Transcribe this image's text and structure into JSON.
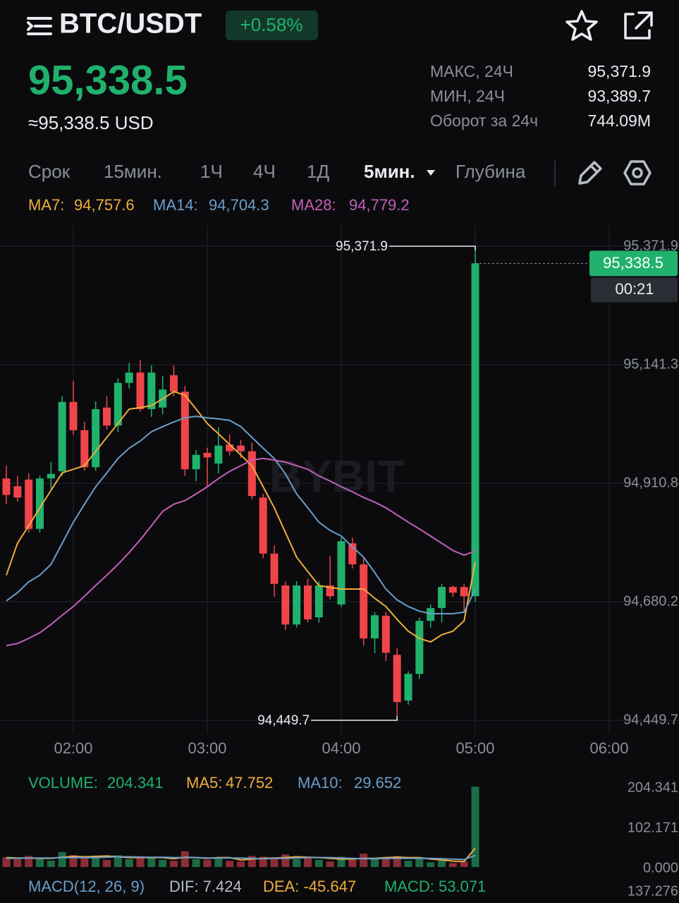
{
  "header": {
    "pair": "BTC/USDT",
    "change": "+0.58%",
    "price": "95,338.5",
    "price_usd": "≈95,338.5 USD"
  },
  "stats": [
    {
      "label": "МАКС, 24Ч",
      "value": "95,371.9"
    },
    {
      "label": "МИН, 24Ч",
      "value": "93,389.7"
    },
    {
      "label": "Оборот за 24ч",
      "value": "744.09M"
    }
  ],
  "tabs": [
    "Срок",
    "15мин.",
    "1Ч",
    "4Ч",
    "1Д",
    "5мин.",
    "Глубина"
  ],
  "selected_tab": 5,
  "chart_data": [
    {
      "type": "candlestick",
      "x": [
        "01:30",
        "01:35",
        "01:40",
        "01:45",
        "01:50",
        "01:55",
        "02:00",
        "02:05",
        "02:10",
        "02:15",
        "02:20",
        "02:25",
        "02:30",
        "02:35",
        "02:40",
        "02:45",
        "02:50",
        "02:55",
        "03:00",
        "03:05",
        "03:10",
        "03:15",
        "03:20",
        "03:25",
        "03:30",
        "03:35",
        "03:40",
        "03:45",
        "03:50",
        "03:55",
        "04:00",
        "04:05",
        "04:10",
        "04:15",
        "04:20",
        "04:25",
        "04:30",
        "04:35",
        "04:40",
        "04:45",
        "04:50",
        "04:55",
        "05:00"
      ],
      "open": [
        94920,
        94905,
        94918,
        94822,
        94920,
        94934,
        95069,
        95014,
        94942,
        95058,
        95023,
        95106,
        95126,
        95055,
        95058,
        95121,
        95089,
        94938,
        94970,
        94949,
        94986,
        94984,
        94973,
        94883,
        94774,
        94712,
        94636,
        94712,
        94650,
        94712,
        94675,
        94794,
        94753,
        94609,
        94653,
        94577,
        94488,
        94540,
        94643,
        94668,
        94709,
        94709,
        94691
      ],
      "high": [
        94945,
        94925,
        94930,
        94925,
        94952,
        95080,
        95110,
        95030,
        95070,
        95080,
        95115,
        95145,
        95150,
        95140,
        95120,
        95140,
        95100,
        94975,
        94980,
        95020,
        95005,
        94995,
        94990,
        94890,
        94790,
        94720,
        94720,
        94725,
        94720,
        94770,
        94805,
        94805,
        94765,
        94660,
        94660,
        94590,
        94545,
        94650,
        94675,
        94715,
        94712,
        94715,
        95371.9
      ],
      "low": [
        94870,
        94875,
        94815,
        94815,
        94900,
        94925,
        95005,
        94935,
        94935,
        95015,
        95010,
        95095,
        95050,
        95040,
        95045,
        95080,
        94925,
        94915,
        94904,
        94930,
        94965,
        94960,
        94880,
        94765,
        94690,
        94625,
        94630,
        94640,
        94640,
        94685,
        94670,
        94745,
        94595,
        94580,
        94565,
        94449.7,
        94480,
        94530,
        94630,
        94640,
        94690,
        94660,
        94680
      ],
      "close": [
        94888,
        94883,
        94822,
        94920,
        94929,
        95069,
        95014,
        94942,
        95055,
        95023,
        95106,
        95126,
        95055,
        95126,
        95093,
        95089,
        94938,
        94966,
        94961,
        94984,
        94973,
        94973,
        94886,
        94774,
        94715,
        94636,
        94712,
        94646,
        94712,
        94691,
        94798,
        94753,
        94609,
        94654,
        94581,
        94485,
        94540,
        94643,
        94668,
        94709,
        94698,
        94691,
        95338.5
      ],
      "up_color": "#20b26c",
      "down_color": "#ef454a",
      "series": [
        {
          "name": "MA7:",
          "label": "94,757.6",
          "color": "#f0ad3c",
          "values": [
            94732,
            94794,
            94828,
            94863,
            94897,
            94931,
            94938,
            94945,
            94973,
            95000,
            95027,
            95055,
            95058,
            95062,
            95075,
            95089,
            95082,
            95055,
            95027,
            95007,
            94986,
            94966,
            94945,
            94904,
            94863,
            94815,
            94767,
            94739,
            94712,
            94708,
            94705,
            94705,
            94705,
            94687,
            94671,
            94646,
            94623,
            94609,
            94602,
            94616,
            94623,
            94643,
            94757.6
          ]
        },
        {
          "name": "MA14:",
          "label": "94,704.3",
          "color": "#6a9fc8",
          "values": [
            94682,
            94698,
            94719,
            94732,
            94753,
            94794,
            94835,
            94870,
            94904,
            94931,
            94959,
            94979,
            94993,
            95011,
            95021,
            95030,
            95038,
            95041,
            95038,
            95036,
            95033,
            95021,
            95000,
            94979,
            94959,
            94929,
            94890,
            94863,
            94835,
            94819,
            94808,
            94787,
            94767,
            94737,
            94705,
            94684,
            94671,
            94662,
            94657,
            94657,
            94657,
            94660,
            94704.3
          ]
        },
        {
          "name": "MA28:",
          "label": "94,779.2",
          "color": "#c55fb8",
          "values": [
            94595,
            94599,
            94609,
            94620,
            94636,
            94654,
            94671,
            94691,
            94712,
            94732,
            94753,
            94776,
            94801,
            94828,
            94856,
            94870,
            94877,
            94890,
            94904,
            94920,
            94934,
            94945,
            94956,
            94959,
            94956,
            94952,
            94945,
            94938,
            94925,
            94915,
            94904,
            94894,
            94883,
            94874,
            94863,
            94849,
            94835,
            94822,
            94808,
            94794,
            94780,
            94771,
            94779.2
          ]
        }
      ],
      "ylim": [
        94423.6,
        95411.7
      ],
      "yticks": [
        {
          "value": 95371.9,
          "label": "95,371.9"
        },
        {
          "value": 95141.3,
          "label": "95,141.3"
        },
        {
          "value": 94910.8,
          "label": "94,910.8"
        },
        {
          "value": 94680.2,
          "label": "94,680.2"
        },
        {
          "value": 94449.7,
          "label": "94,449.7"
        }
      ],
      "xticks": [
        "02:00",
        "03:00",
        "04:00",
        "05:00",
        "06:00"
      ],
      "max_label": {
        "value": 95371.9,
        "label": "95,371.9"
      },
      "min_label": {
        "value": 94449.7,
        "label": "94,449.7"
      },
      "last_price": {
        "value": 95338.5,
        "label": "95,338.5"
      },
      "countdown": "00:21",
      "grid": true,
      "watermark": "BYBIT"
    },
    {
      "type": "bar",
      "x": [
        "01:30",
        "01:35",
        "01:40",
        "01:45",
        "01:50",
        "01:55",
        "02:00",
        "02:05",
        "02:10",
        "02:15",
        "02:20",
        "02:25",
        "02:30",
        "02:35",
        "02:40",
        "02:45",
        "02:50",
        "02:55",
        "03:00",
        "03:05",
        "03:10",
        "03:15",
        "03:20",
        "03:25",
        "03:30",
        "03:35",
        "03:40",
        "03:45",
        "03:50",
        "03:55",
        "04:00",
        "04:05",
        "04:10",
        "04:15",
        "04:20",
        "04:25",
        "04:30",
        "04:35",
        "04:40",
        "04:45",
        "04:50",
        "04:55",
        "05:00"
      ],
      "series": [
        {
          "name": "VOLUME:",
          "label": "204.341",
          "color": "#20b26c",
          "values": [
            25,
            20,
            28,
            22,
            16,
            38,
            30,
            24,
            28,
            18,
            30,
            20,
            28,
            24,
            18,
            16,
            40,
            20,
            18,
            24,
            16,
            14,
            28,
            26,
            22,
            32,
            20,
            24,
            18,
            14,
            26,
            18,
            34,
            20,
            24,
            28,
            16,
            20,
            12,
            16,
            10,
            14,
            204.341
          ]
        },
        {
          "name": "MA5:",
          "label": "47.752",
          "color": "#f0ad3c",
          "values": [
            24,
            23,
            23,
            22,
            22,
            25,
            27,
            26,
            27,
            28,
            26,
            24,
            24,
            24,
            24,
            21,
            25,
            24,
            22,
            24,
            24,
            18,
            20,
            22,
            23,
            24,
            26,
            25,
            24,
            22,
            20,
            20,
            22,
            22,
            24,
            25,
            24,
            24,
            20,
            18,
            15,
            14,
            47.752
          ]
        },
        {
          "name": "MA10:",
          "label": "29.652",
          "color": "#6a9fc8",
          "values": [
            22,
            22,
            23,
            23,
            23,
            24,
            24,
            24,
            24,
            25,
            26,
            26,
            25,
            25,
            25,
            24,
            24,
            24,
            23,
            23,
            23,
            23,
            22,
            21,
            22,
            22,
            23,
            24,
            24,
            24,
            23,
            22,
            21,
            21,
            22,
            22,
            22,
            22,
            22,
            21,
            20,
            19,
            29.652
          ]
        }
      ],
      "up_color": "#1d6b45",
      "down_color": "#8c2d36",
      "ylim": [
        0,
        204.341
      ],
      "yticks": [
        204.341,
        102.171,
        {
          "value": 0,
          "label": "0.000"
        }
      ]
    }
  ],
  "macd": {
    "title": "MACD(12, 26, 9)",
    "dif": "DIF: 7.424",
    "dea": "DEA: -45.647",
    "macd": "MACD: 53.071",
    "axis_label": "137.276"
  }
}
